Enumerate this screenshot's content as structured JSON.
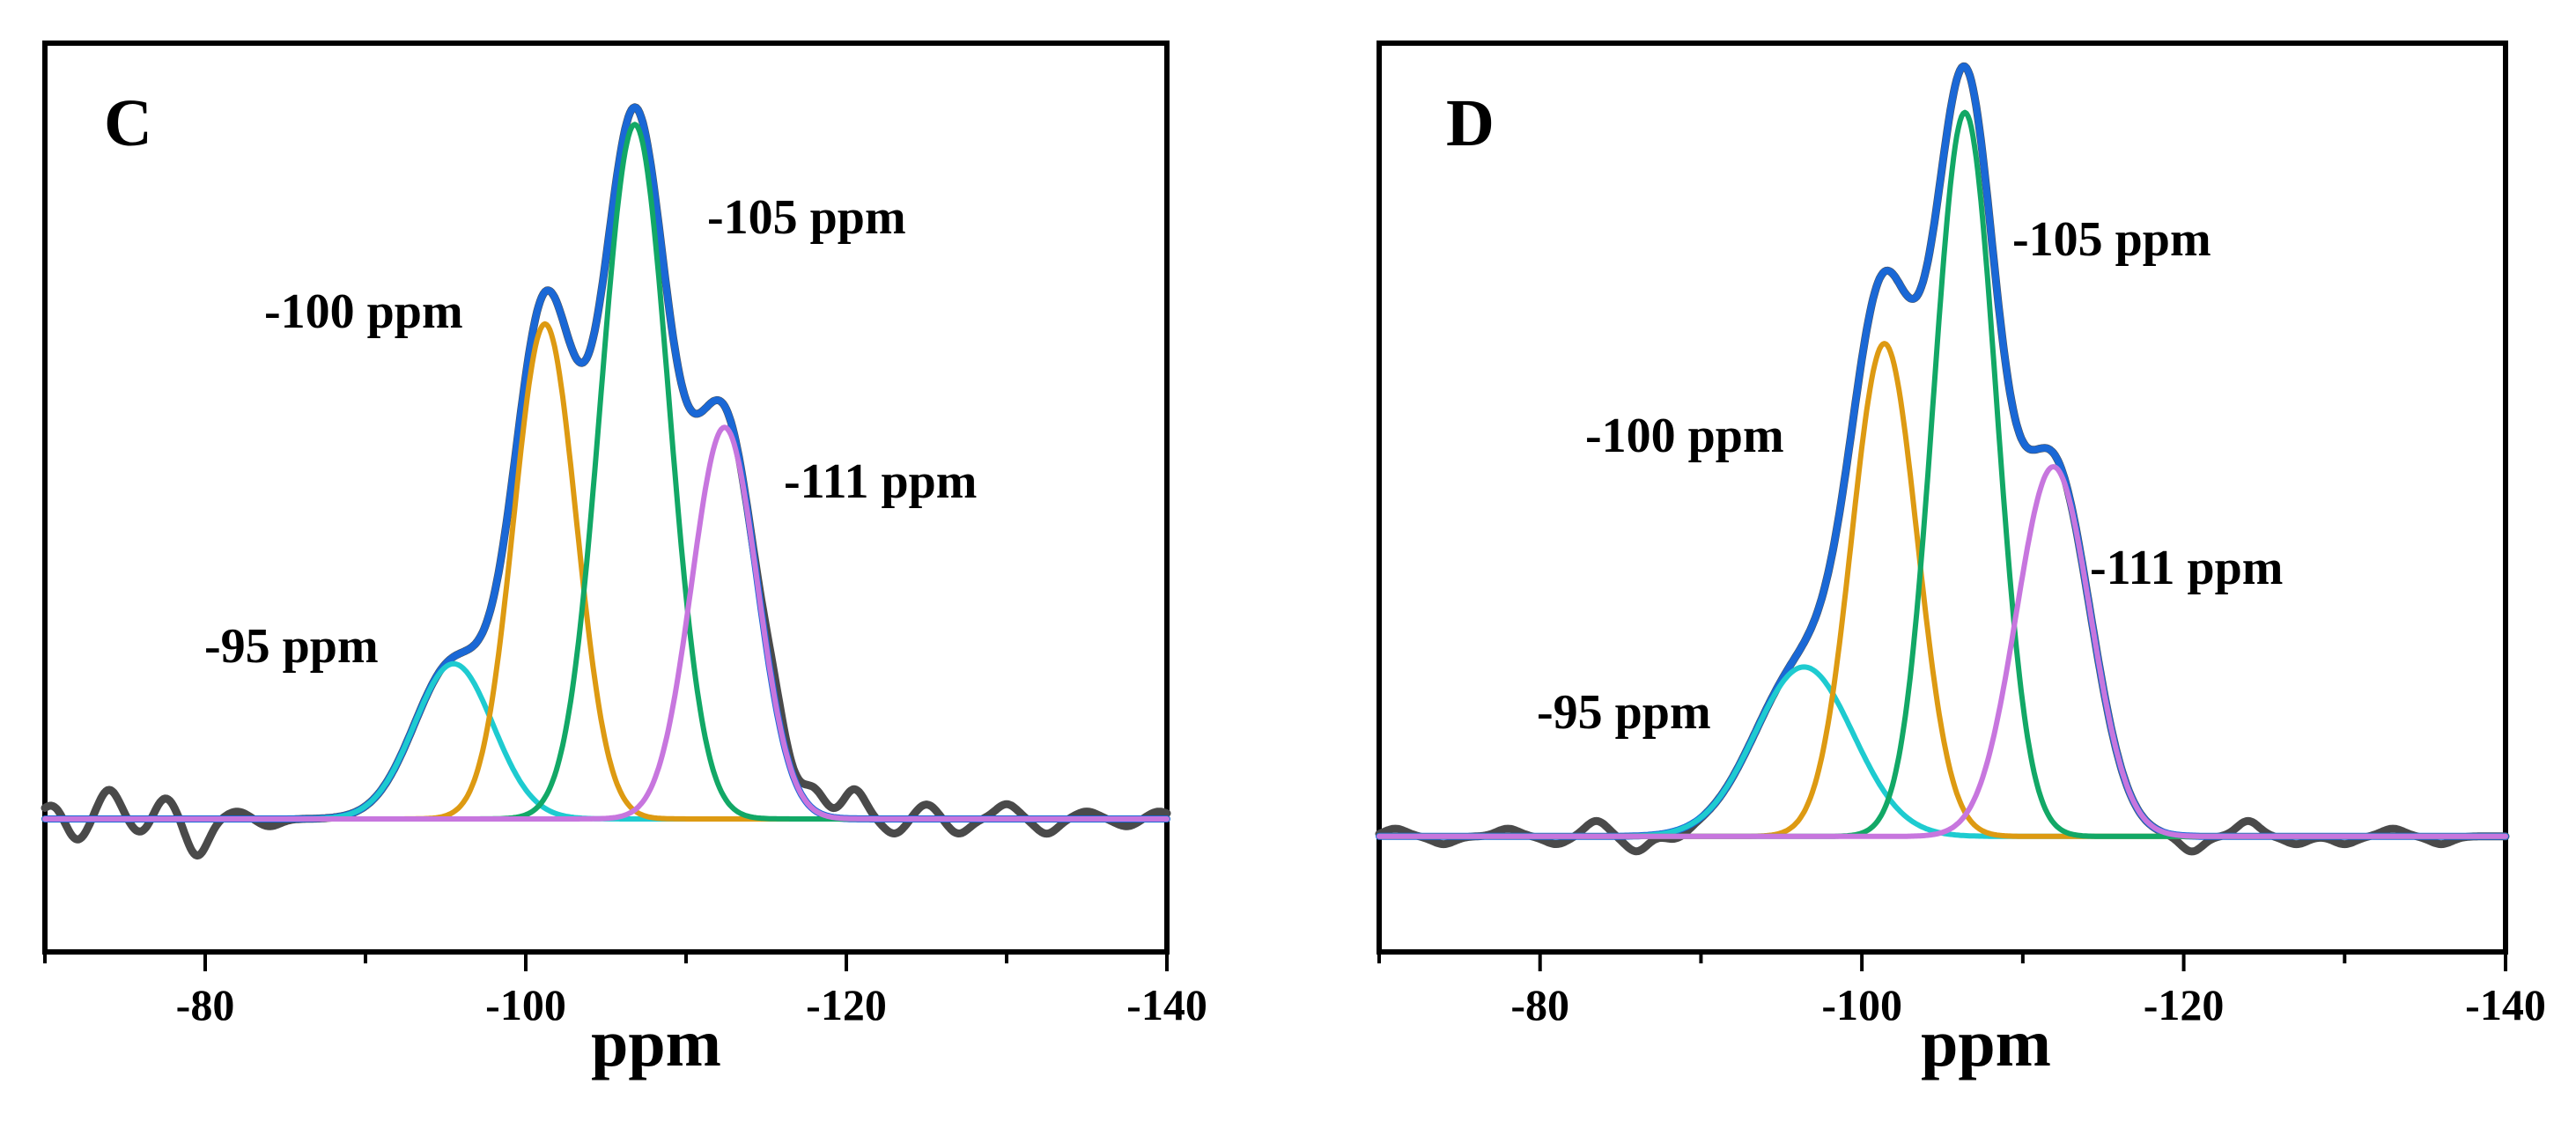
{
  "chart_data": [
    {
      "type": "line",
      "panel_label": "C",
      "xlabel": "ppm",
      "ylabel": "",
      "xlim": [
        -70,
        -140
      ],
      "xticks": [
        -80,
        -100,
        -120,
        -140
      ],
      "ylim": [
        -0.18,
        1.05
      ],
      "baseline_noise": [
        {
          "center": -70.5,
          "height": 0.02
        },
        {
          "center": -72.0,
          "height": -0.03
        },
        {
          "center": -74.0,
          "height": 0.04
        },
        {
          "center": -76.0,
          "height": -0.02
        },
        {
          "center": -77.5,
          "height": 0.03
        },
        {
          "center": -79.5,
          "height": -0.05
        },
        {
          "center": -82.0,
          "height": 0.01
        },
        {
          "center": -84.0,
          "height": -0.01
        },
        {
          "center": -115.5,
          "height": 0.03
        },
        {
          "center": -118.0,
          "height": 0.03
        },
        {
          "center": -120.5,
          "height": 0.04
        },
        {
          "center": -123.0,
          "height": -0.02
        },
        {
          "center": -125.0,
          "height": 0.02
        },
        {
          "center": -127.0,
          "height": -0.02
        },
        {
          "center": -130.0,
          "height": 0.02
        },
        {
          "center": -132.5,
          "height": -0.02
        },
        {
          "center": -135.0,
          "height": 0.01
        },
        {
          "center": -137.5,
          "height": -0.01
        },
        {
          "center": -139.5,
          "height": 0.01
        }
      ],
      "series": [
        {
          "name": "-95 ppm",
          "color": "#1ecbd0",
          "center": -95.5,
          "height": 0.21,
          "fwhm": 5.8
        },
        {
          "name": "-100 ppm",
          "color": "#dd9a12",
          "center": -101.2,
          "height": 0.67,
          "fwhm": 4.6
        },
        {
          "name": "-105 ppm",
          "color": "#12a866",
          "center": -106.8,
          "height": 0.94,
          "fwhm": 5.0
        },
        {
          "name": "-111 ppm",
          "color": "#c776de",
          "center": -112.4,
          "height": 0.53,
          "fwhm": 4.8
        }
      ],
      "experimental_color": "#4a4a4a",
      "fit_color": "#1a68d6",
      "annotations": [
        {
          "text": "-95 ppm",
          "x": -95.5
        },
        {
          "text": "-100 ppm",
          "x": -101.2
        },
        {
          "text": "-105 ppm",
          "x": -106.8
        },
        {
          "text": "-111 ppm",
          "x": -112.4
        }
      ]
    },
    {
      "type": "line",
      "panel_label": "D",
      "xlabel": "ppm",
      "ylabel": "",
      "xlim": [
        -70,
        -140
      ],
      "xticks": [
        -80,
        -100,
        -120,
        -140
      ],
      "ylim": [
        -0.15,
        1.03
      ],
      "baseline_noise": [
        {
          "center": -71.0,
          "height": 0.01
        },
        {
          "center": -74.0,
          "height": -0.01
        },
        {
          "center": -78.0,
          "height": 0.01
        },
        {
          "center": -81.0,
          "height": -0.01
        },
        {
          "center": -83.5,
          "height": 0.02
        },
        {
          "center": -86.0,
          "height": -0.02
        },
        {
          "center": -88.5,
          "height": -0.01
        },
        {
          "center": -120.5,
          "height": -0.02
        },
        {
          "center": -124.0,
          "height": 0.02
        },
        {
          "center": -127.0,
          "height": -0.01
        },
        {
          "center": -130.0,
          "height": -0.01
        },
        {
          "center": -133.0,
          "height": 0.01
        },
        {
          "center": -136.0,
          "height": -0.01
        }
      ],
      "series": [
        {
          "name": "-95 ppm",
          "color": "#1ecbd0",
          "center": -96.4,
          "height": 0.22,
          "fwhm": 7.2
        },
        {
          "name": "-100 ppm",
          "color": "#dd9a12",
          "center": -101.4,
          "height": 0.64,
          "fwhm": 4.8
        },
        {
          "name": "-105 ppm",
          "color": "#12a866",
          "center": -106.4,
          "height": 0.94,
          "fwhm": 4.6
        },
        {
          "name": "-111 ppm",
          "color": "#c776de",
          "center": -111.9,
          "height": 0.48,
          "fwhm": 5.4
        }
      ],
      "experimental_color": "#4a4a4a",
      "fit_color": "#1a68d6",
      "annotations": [
        {
          "text": "-95 ppm",
          "x": -96.4
        },
        {
          "text": "-100 ppm",
          "x": -101.4
        },
        {
          "text": "-105 ppm",
          "x": -106.4
        },
        {
          "text": "-111 ppm",
          "x": -111.9
        }
      ]
    }
  ]
}
